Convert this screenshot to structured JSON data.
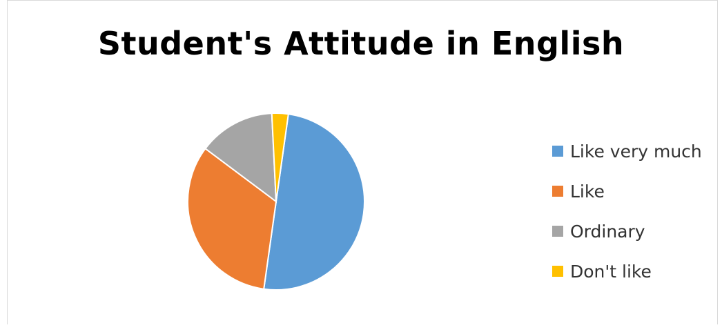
{
  "chart_data": {
    "type": "pie",
    "title": "Student's Attitude in English",
    "categories": [
      "Like very much",
      "Like",
      "Ordinary",
      "Don't like"
    ],
    "values": [
      50,
      33,
      14,
      3
    ],
    "colors": [
      "#5b9bd5",
      "#ed7d31",
      "#a5a5a5",
      "#ffc000"
    ],
    "legend_position": "right",
    "start_angle_deg": 8
  }
}
